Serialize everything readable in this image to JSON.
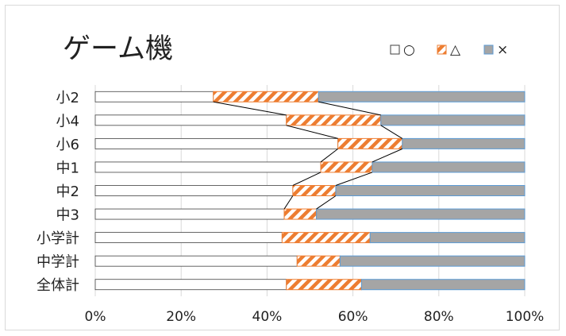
{
  "chart_data": {
    "type": "bar",
    "orientation": "horizontal",
    "stacked": "percent",
    "title": "ゲーム機",
    "categories": [
      "小2",
      "小4",
      "小6",
      "中1",
      "中2",
      "中3",
      "小学計",
      "中学計",
      "全体計"
    ],
    "series": [
      {
        "name": "□○",
        "color": "#ffffff",
        "values": [
          27.5,
          44.5,
          56.5,
          52.5,
          46.0,
          44.0,
          43.5,
          47.0,
          44.5
        ]
      },
      {
        "name": "◪△",
        "color": "#ed7d31",
        "values": [
          24.5,
          22.0,
          15.0,
          12.0,
          10.0,
          7.5,
          20.5,
          10.0,
          17.5
        ]
      },
      {
        "name": "■×",
        "color": "#a5a5a5",
        "values": [
          48.0,
          33.5,
          28.5,
          35.5,
          44.0,
          48.5,
          36.0,
          43.0,
          38.0
        ]
      }
    ],
    "xlim": [
      0,
      100
    ],
    "x_ticks": [
      "0%",
      "20%",
      "40%",
      "60%",
      "80%",
      "100%"
    ],
    "gridlines": true,
    "legend_position": "top-right",
    "series_lines": true
  }
}
